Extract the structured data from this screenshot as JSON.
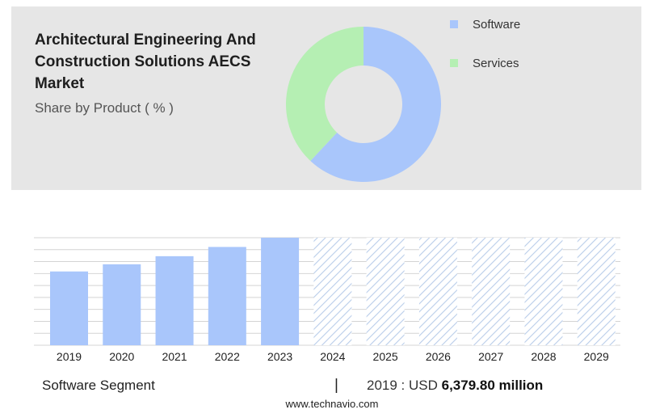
{
  "header": {
    "title": "Architectural Engineering And Construction Solutions AECS Market",
    "subtitle": "Share by Product ( % )"
  },
  "pie": {
    "slices": [
      {
        "label": "Software",
        "value": 62,
        "color": "#a9c6fb"
      },
      {
        "label": "Services",
        "value": 38,
        "color": "#b5efb3"
      }
    ]
  },
  "chart_data": [
    {
      "type": "pie",
      "categories": [
        "Software",
        "Services"
      ],
      "values": [
        62,
        38
      ],
      "title": "Architectural Engineering And Construction Solutions AECS Market",
      "subtitle": "Share by Product ( % )",
      "legend": "top-right",
      "colors": [
        "#a9c6fb",
        "#b5efb3"
      ]
    },
    {
      "type": "bar",
      "categories": [
        "2019",
        "2020",
        "2021",
        "2022",
        "2023",
        "2024",
        "2025",
        "2026",
        "2027",
        "2028",
        "2029"
      ],
      "values": [
        6379.8,
        7000,
        7700,
        8500,
        9300,
        null,
        null,
        null,
        null,
        null,
        null
      ],
      "forecast_categories": [
        "2024",
        "2025",
        "2026",
        "2027",
        "2028",
        "2029"
      ],
      "ylim": [
        0,
        9300
      ],
      "grid": true,
      "bar_color": "#a9c6fb",
      "forecast_color": "#b9cdea"
    }
  ],
  "footer": {
    "segment_label": "Software Segment",
    "divider": "|",
    "stat_prefix": "2019 : USD",
    "stat_value": "6,379.80 million",
    "source": "www.technavio.com"
  }
}
